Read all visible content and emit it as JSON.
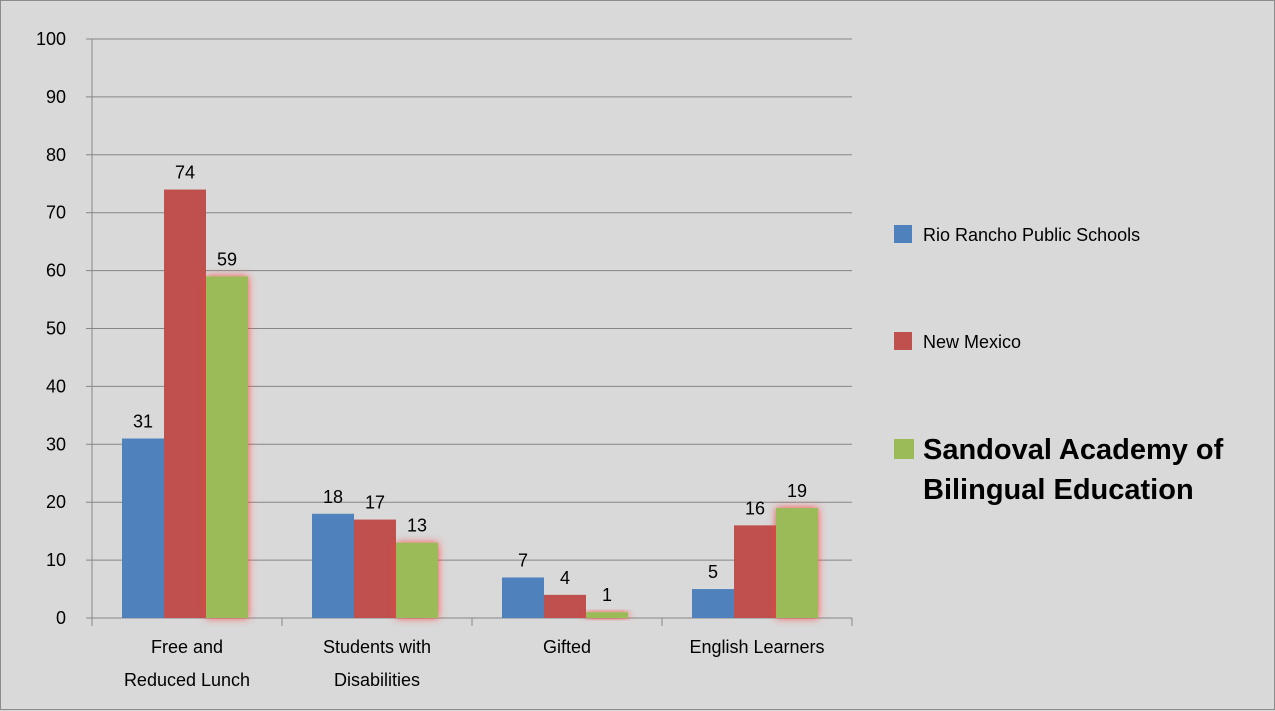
{
  "chart_data": {
    "type": "bar",
    "categories": [
      [
        "Free and",
        "Reduced Lunch"
      ],
      [
        "Students with",
        "Disabilities"
      ],
      [
        "Gifted"
      ],
      [
        "English Learners"
      ]
    ],
    "series": [
      {
        "name": "Rio Rancho Public Schools",
        "values": [
          31,
          18,
          7,
          5
        ],
        "color": "#4f81bd",
        "glow": false,
        "legend_bold": false
      },
      {
        "name": "New Mexico",
        "values": [
          74,
          17,
          4,
          16
        ],
        "color": "#c0504d",
        "glow": false,
        "legend_bold": false
      },
      {
        "name": "Sandoval Academy of Bilingual Education",
        "legend_lines": [
          "Sandoval Academy of",
          "Bilingual Education"
        ],
        "values": [
          59,
          13,
          1,
          19
        ],
        "color": "#9bbb59",
        "glow": true,
        "legend_bold": true
      }
    ],
    "y_ticks": [
      0,
      10,
      20,
      30,
      40,
      50,
      60,
      70,
      80,
      90,
      100
    ],
    "ylim": [
      0,
      100
    ],
    "grid": true,
    "data_labels": true,
    "legend_position": "right",
    "glow_color": "#ff3b3b",
    "gridline_color": "#868686",
    "background": "#d9d9d9"
  }
}
